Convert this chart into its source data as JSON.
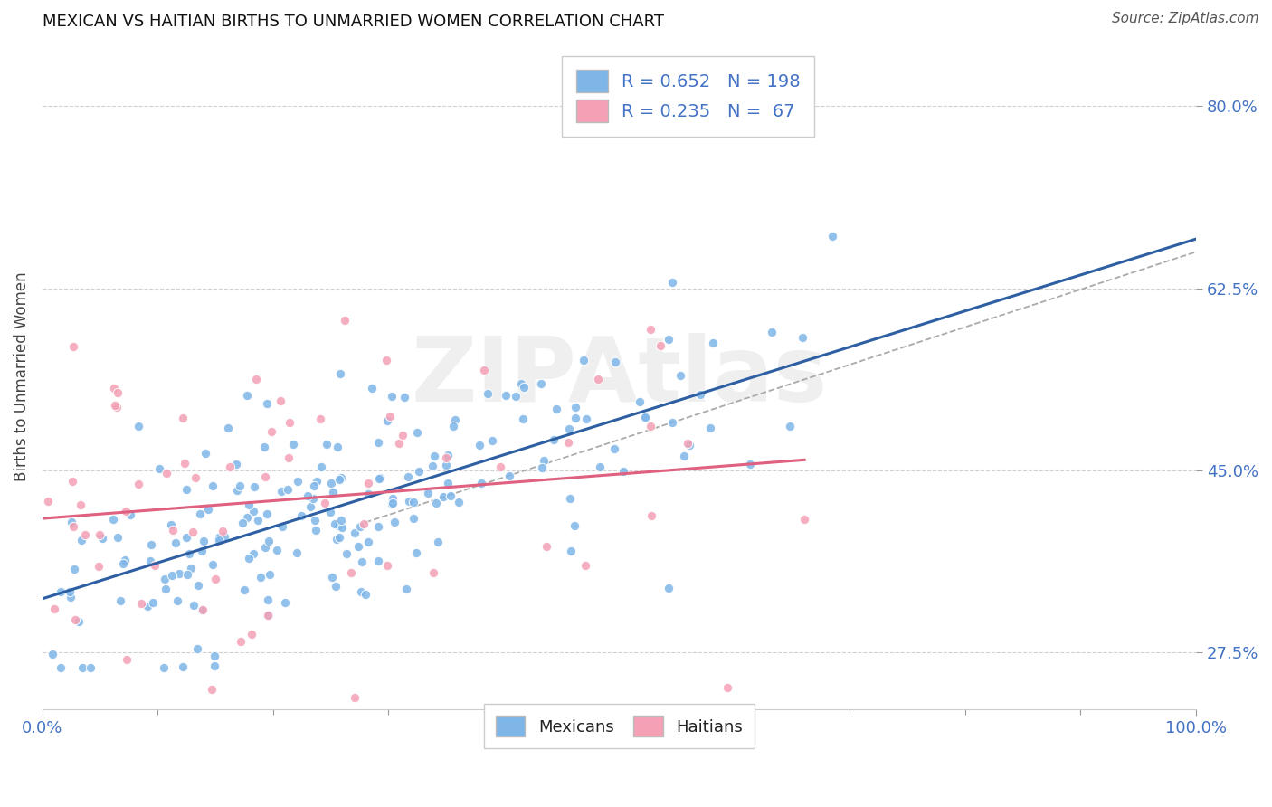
{
  "title": "MEXICAN VS HAITIAN BIRTHS TO UNMARRIED WOMEN CORRELATION CHART",
  "source": "Source: ZipAtlas.com",
  "ylabel": "Births to Unmarried Women",
  "watermark": "ZIPAtlas",
  "mexican_color": "#7EB6E8",
  "haitian_color": "#F4A0B5",
  "mexican_line_color": "#2E5FA3",
  "haitian_line_color": "#E06080",
  "R_mexican": 0.652,
  "N_mexican": 198,
  "R_haitian": 0.235,
  "N_haitian": 67,
  "legend_text_color": "#4472C4",
  "background_color": "#FFFFFF",
  "grid_color": "#CCCCCC",
  "xlim": [
    0.0,
    1.0
  ],
  "ylim": [
    0.22,
    0.86
  ],
  "ytick_positions": [
    0.275,
    0.45,
    0.625,
    0.8
  ],
  "ytick_labels": [
    "27.5%",
    "45.0%",
    "62.5%",
    "80.0%"
  ],
  "title_fontsize": 13,
  "tick_fontsize": 13,
  "source_fontsize": 11
}
